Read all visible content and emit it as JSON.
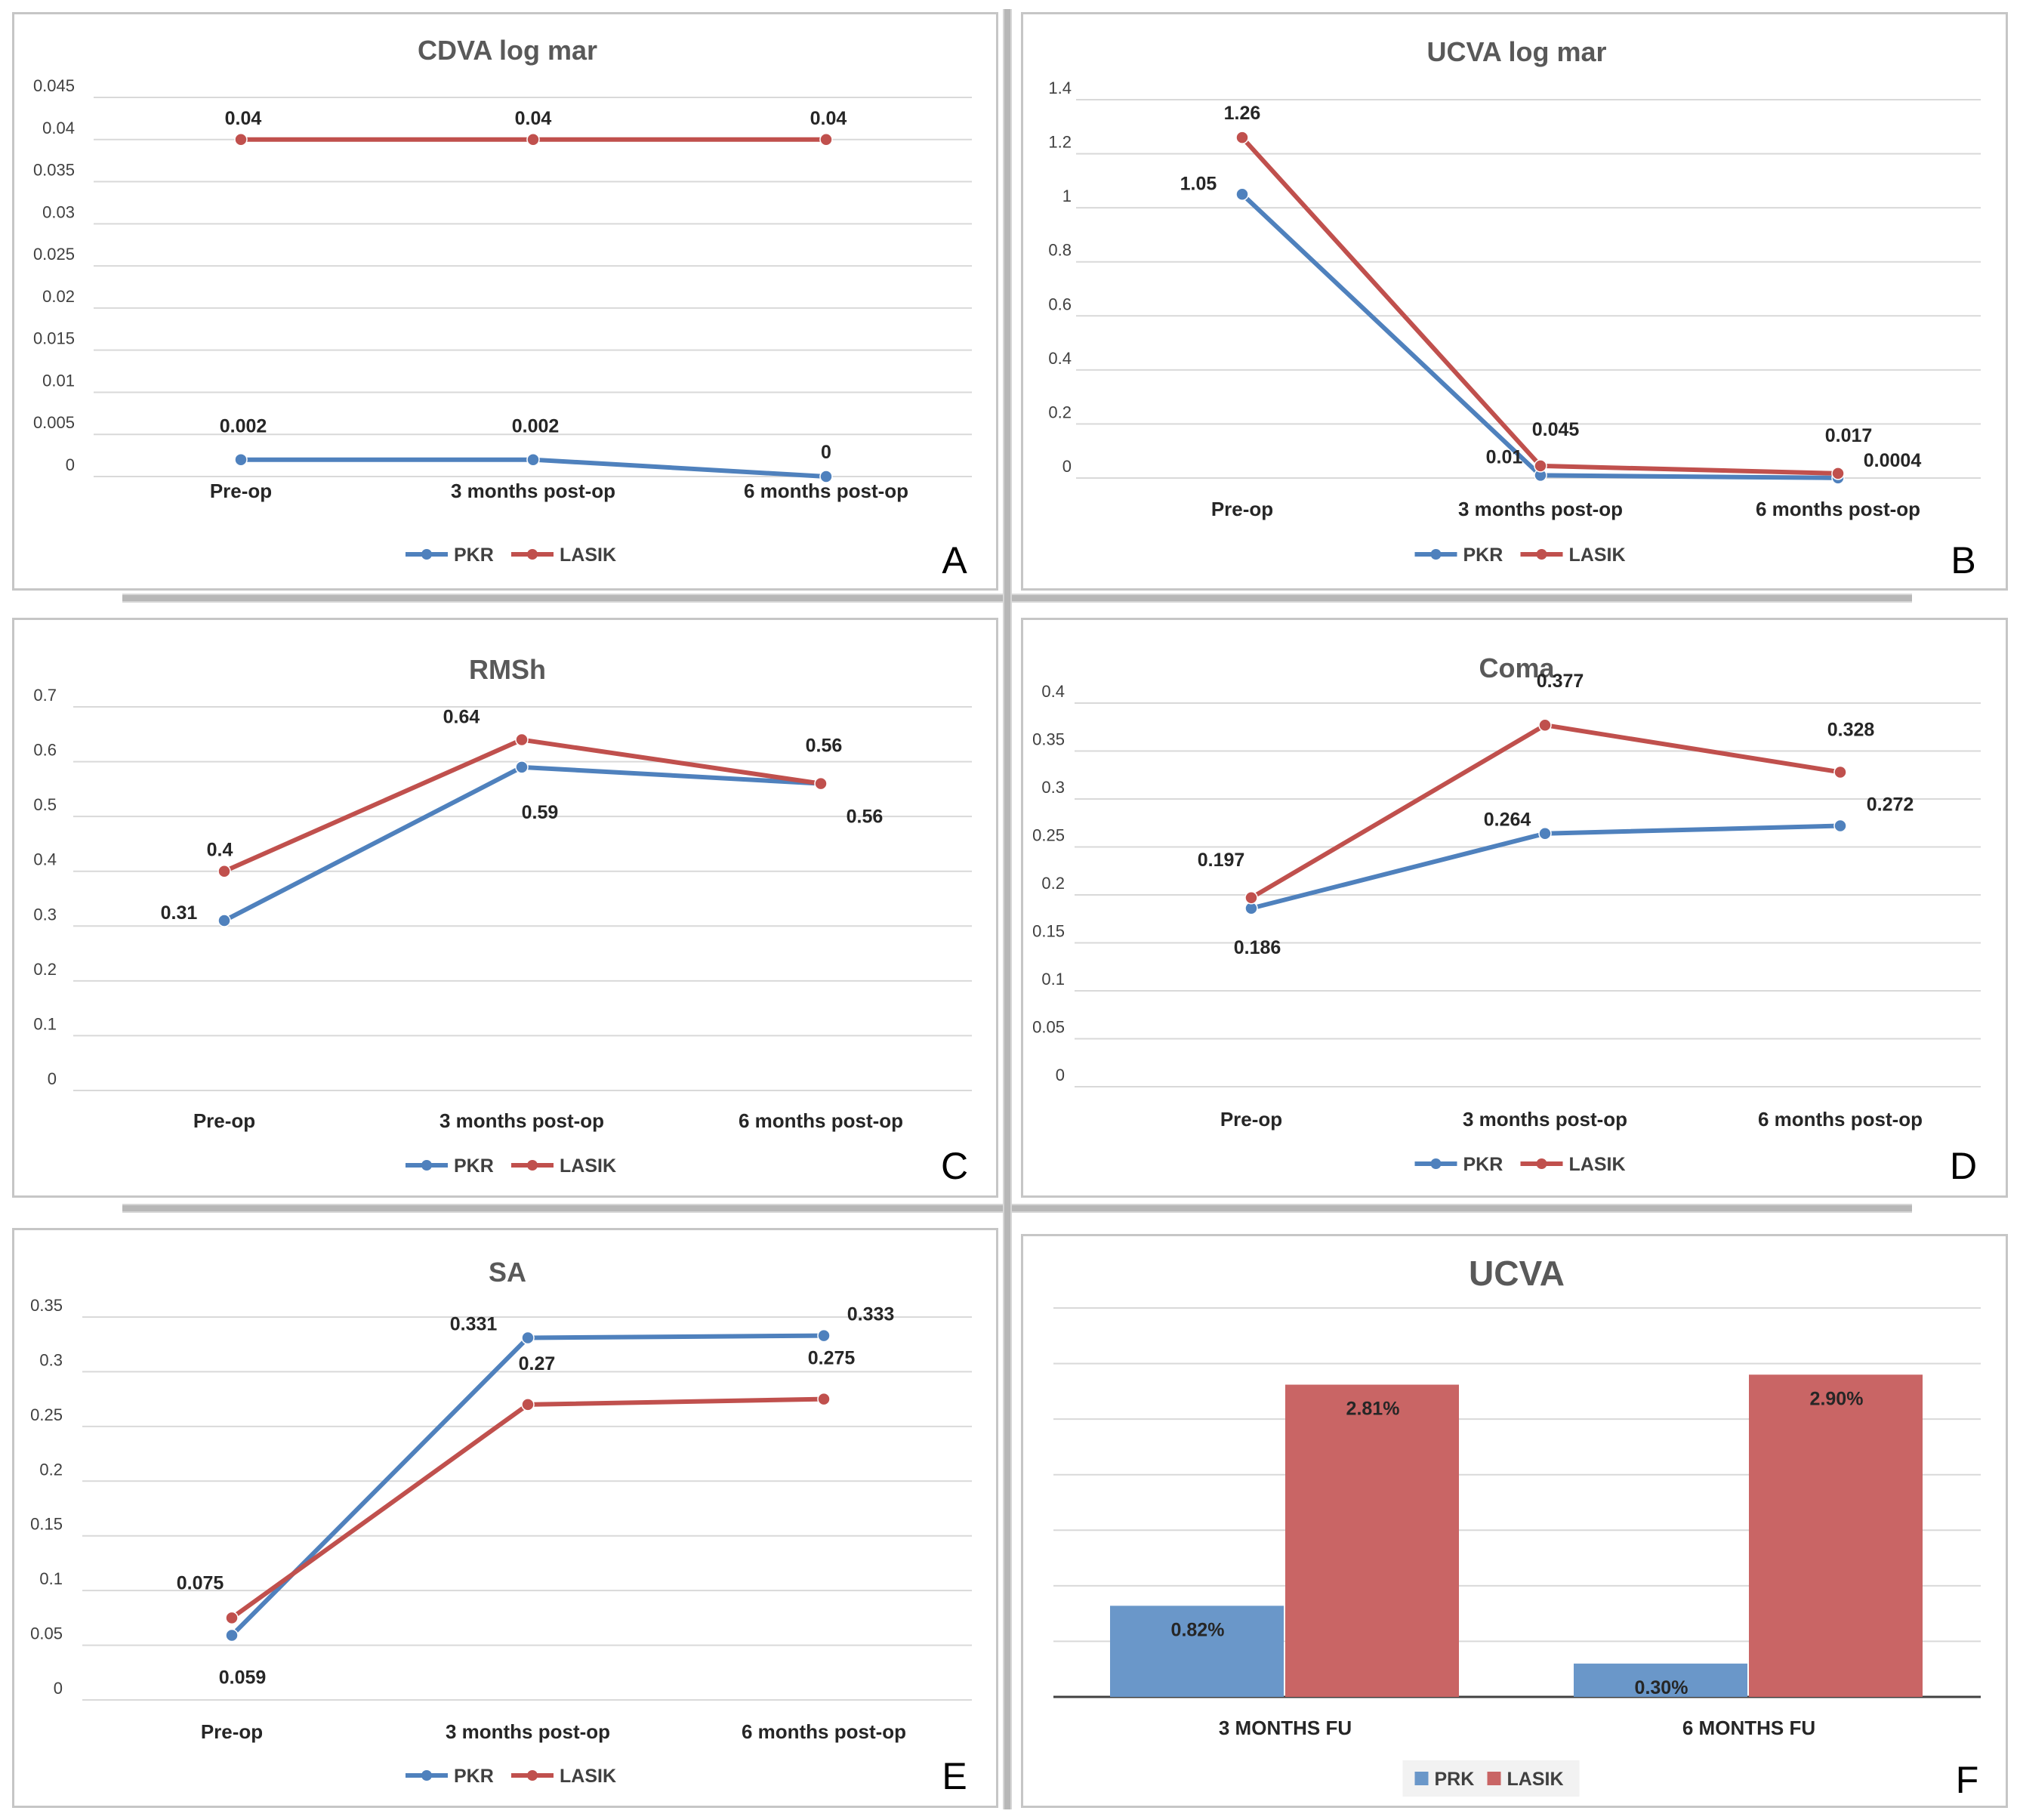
{
  "chart_data": [
    {
      "id": "A",
      "type": "line",
      "title": "CDVA log mar",
      "panel_label": "A",
      "categories": [
        "Pre-op",
        "3 months post-op",
        "6 months post-op"
      ],
      "ylim": [
        0,
        0.045
      ],
      "yticks": [
        "0",
        "0.005",
        "0.01",
        "0.015",
        "0.02",
        "0.025",
        "0.03",
        "0.035",
        "0.04",
        "0.045"
      ],
      "grid": true,
      "legend": "bottom",
      "series": [
        {
          "name": "PKR",
          "color": "#4f81bd",
          "values": [
            0.002,
            0.002,
            0
          ],
          "labels": [
            "0.002",
            "0.002",
            "0"
          ]
        },
        {
          "name": "LASIK",
          "color": "#c0504d",
          "values": [
            0.04,
            0.04,
            0.04
          ],
          "labels": [
            "0.04",
            "0.04",
            "0.04"
          ]
        }
      ]
    },
    {
      "id": "B",
      "type": "line",
      "title": "UCVA log mar",
      "panel_label": "B",
      "categories": [
        "Pre-op",
        "3 months post-op",
        "6 months post-op"
      ],
      "ylim": [
        0,
        1.4
      ],
      "yticks": [
        "0",
        "0.2",
        "0.4",
        "0.6",
        "0.8",
        "1",
        "1.2",
        "1.4"
      ],
      "grid": true,
      "legend": "bottom",
      "series": [
        {
          "name": "PKR",
          "color": "#4f81bd",
          "values": [
            1.05,
            0.01,
            0.0004
          ],
          "labels": [
            "1.05",
            "0.01",
            "0.0004"
          ]
        },
        {
          "name": "LASIK",
          "color": "#c0504d",
          "values": [
            1.26,
            0.045,
            0.017
          ],
          "labels": [
            "1.26",
            "0.045",
            "0.017"
          ]
        }
      ]
    },
    {
      "id": "C",
      "type": "line",
      "title": "RMSh",
      "panel_label": "C",
      "categories": [
        "Pre-op",
        "3 months post-op",
        "6 months post-op"
      ],
      "ylim": [
        0,
        0.7
      ],
      "yticks": [
        "0",
        "0.1",
        "0.2",
        "0.3",
        "0.4",
        "0.5",
        "0.6",
        "0.7"
      ],
      "grid": true,
      "legend": "bottom",
      "series": [
        {
          "name": "PKR",
          "color": "#4f81bd",
          "values": [
            0.31,
            0.59,
            0.56
          ],
          "labels": [
            "0.31",
            "0.59",
            "0.56"
          ]
        },
        {
          "name": "LASIK",
          "color": "#c0504d",
          "values": [
            0.4,
            0.64,
            0.56
          ],
          "labels": [
            "0.4",
            "0.64",
            "0.56"
          ]
        }
      ]
    },
    {
      "id": "D",
      "type": "line",
      "title": "Coma",
      "panel_label": "D",
      "categories": [
        "Pre-op",
        "3 months post-op",
        "6 months post-op"
      ],
      "ylim": [
        0,
        0.4
      ],
      "yticks": [
        "0",
        "0.05",
        "0.1",
        "0.15",
        "0.2",
        "0.25",
        "0.3",
        "0.35",
        "0.4"
      ],
      "grid": true,
      "legend": "bottom",
      "series": [
        {
          "name": "PKR",
          "color": "#4f81bd",
          "values": [
            0.186,
            0.264,
            0.272
          ],
          "labels": [
            "0.186",
            "0.264",
            "0.272"
          ]
        },
        {
          "name": "LASIK",
          "color": "#c0504d",
          "values": [
            0.197,
            0.377,
            0.328
          ],
          "labels": [
            "0.197",
            "0.377",
            "0.328"
          ]
        }
      ]
    },
    {
      "id": "E",
      "type": "line",
      "title": "SA",
      "panel_label": "E",
      "categories": [
        "Pre-op",
        "3 months post-op",
        "6 months post-op"
      ],
      "ylim": [
        0,
        0.35
      ],
      "yticks": [
        "0",
        "0.05",
        "0.1",
        "0.15",
        "0.2",
        "0.25",
        "0.3",
        "0.35"
      ],
      "grid": true,
      "legend": "bottom",
      "series": [
        {
          "name": "PKR",
          "color": "#4f81bd",
          "values": [
            0.059,
            0.331,
            0.333
          ],
          "labels": [
            "0.059",
            "0.331",
            "0.333"
          ]
        },
        {
          "name": "LASIK",
          "color": "#c0504d",
          "values": [
            0.075,
            0.27,
            0.275
          ],
          "labels": [
            "0.075",
            "0.27",
            "0.275"
          ]
        }
      ]
    },
    {
      "id": "F",
      "type": "bar",
      "title": "UCVA",
      "panel_label": "F",
      "categories": [
        "3 MONTHS FU",
        "6 MONTHS FU"
      ],
      "ylim": [
        0,
        3.5
      ],
      "grid": true,
      "legend": "bottom",
      "series": [
        {
          "name": "PRK",
          "color": "#6a97c9",
          "values": [
            0.82,
            0.3
          ],
          "labels": [
            "0.82%",
            "0.30%"
          ]
        },
        {
          "name": "LASIK",
          "color": "#c96565",
          "values": [
            2.81,
            2.9
          ],
          "labels": [
            "2.81%",
            "2.90%"
          ]
        }
      ]
    }
  ]
}
